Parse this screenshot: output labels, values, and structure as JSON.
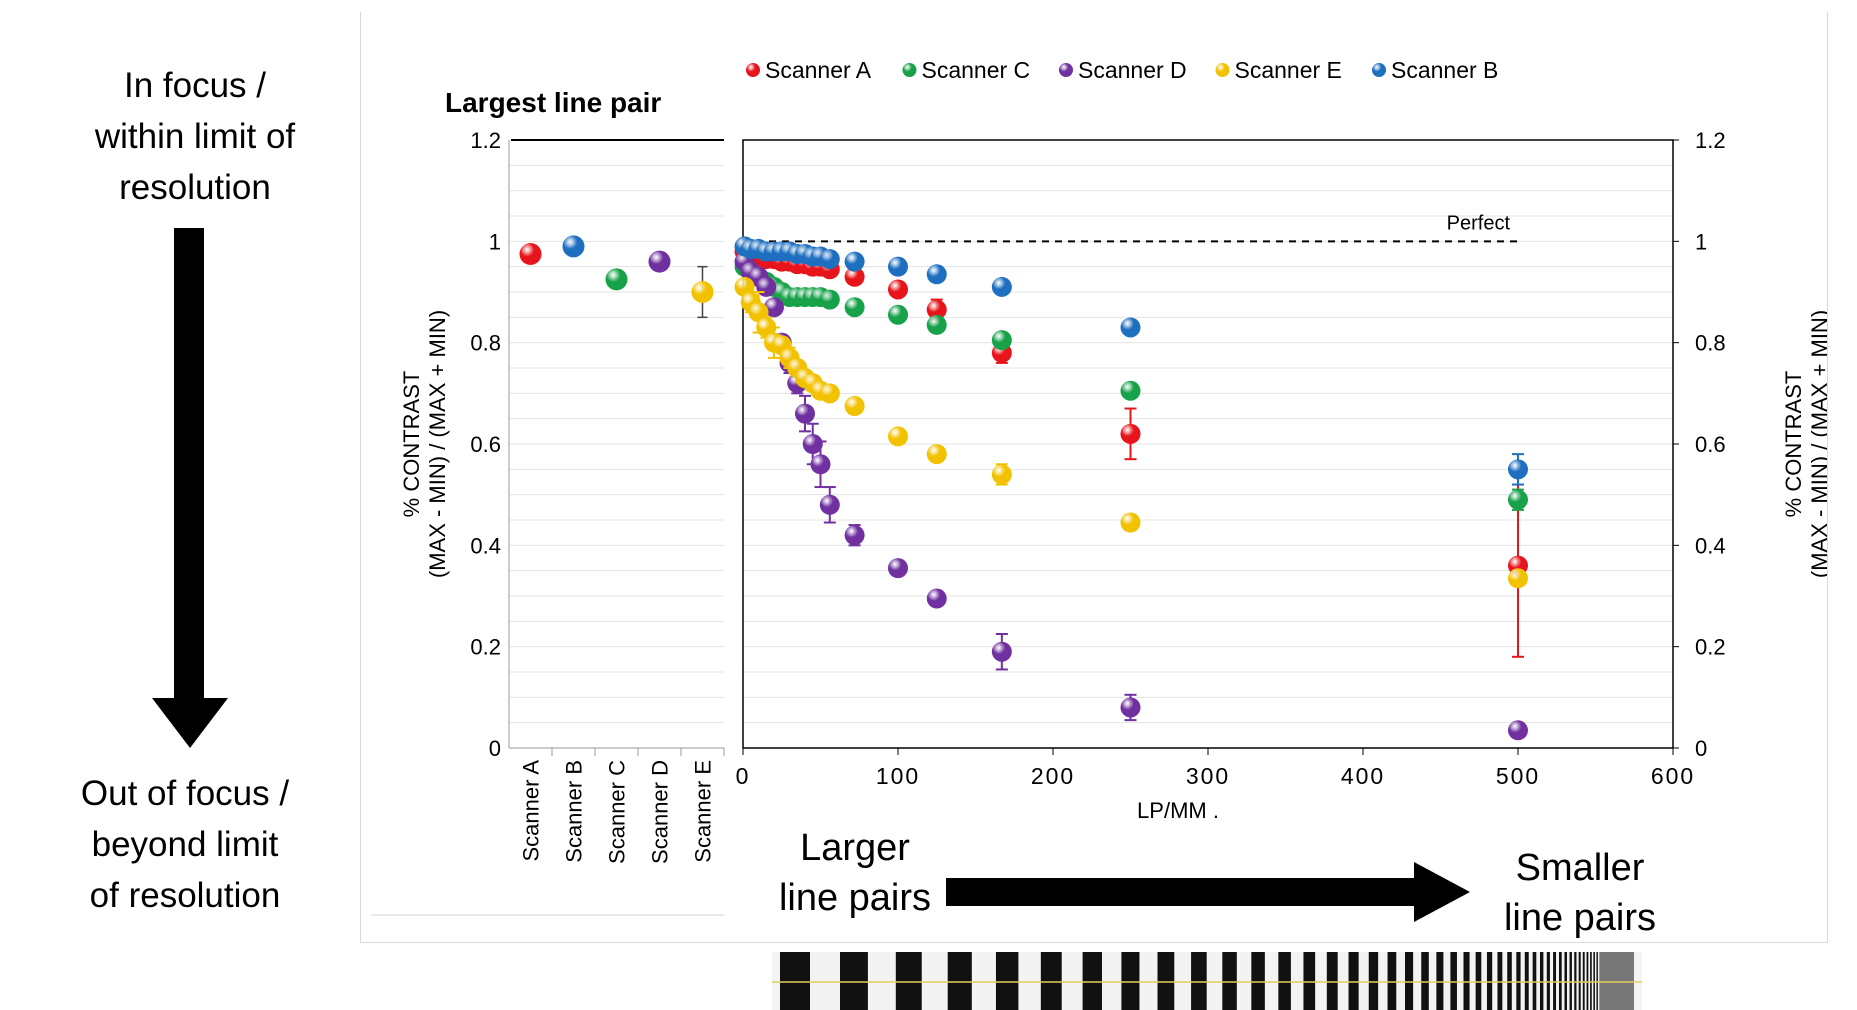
{
  "side": {
    "top_label": [
      "In focus /",
      "within limit of",
      "resolution"
    ],
    "bottom_label": [
      "Out of focus /",
      "beyond limit",
      "of resolution"
    ]
  },
  "bottom": {
    "left_label": [
      "Larger",
      "line pairs"
    ],
    "right_label": [
      "Smaller",
      "line pairs"
    ]
  },
  "colors": {
    "Scanner A": "#e8141b",
    "Scanner B": "#1f6fc0",
    "Scanner C": "#17a24a",
    "Scanner D": "#7030a0",
    "Scanner E": "#f2c200"
  },
  "chart_data": [
    {
      "type": "scatter",
      "title": "Largest line pair",
      "categories": [
        "Scanner A",
        "Scanner B",
        "Scanner C",
        "Scanner D",
        "Scanner E"
      ],
      "values": [
        0.975,
        0.99,
        0.925,
        0.96,
        0.9
      ],
      "errors": [
        0,
        0,
        0,
        0,
        0.05
      ],
      "ylabel": "% CONTRAST\n(MAX - MIN) / (MAX + MIN)",
      "ylabel_lines": [
        "% CONTRAST",
        "(MAX - MIN) / (MAX + MIN)"
      ],
      "ylim": [
        0,
        1.2
      ],
      "yticks": [
        "0",
        "0.2",
        "0.4",
        "0.6",
        "0.8",
        "1",
        "1.2"
      ]
    },
    {
      "type": "scatter",
      "xlabel": "LP/MM .",
      "ylabel_lines": [
        "% CONTRAST",
        "(MAX - MIN) / (MAX + MIN)"
      ],
      "xlim": [
        0,
        600
      ],
      "ylim": [
        0,
        1.2
      ],
      "xticks": [
        "0",
        "100",
        "200",
        "300",
        "400",
        "500",
        "600"
      ],
      "yticks": [
        "0",
        "0.2",
        "0.4",
        "0.6",
        "0.8",
        "1",
        "1.2"
      ],
      "reference_line": {
        "y": 1,
        "label": "Perfect"
      },
      "legend": "top",
      "series": [
        {
          "name": "Scanner A",
          "x": [
            1,
            5,
            10,
            15,
            20,
            25,
            30,
            35,
            40,
            45,
            50,
            56,
            72,
            100,
            125,
            167,
            250,
            500
          ],
          "y": [
            0.98,
            0.975,
            0.97,
            0.965,
            0.965,
            0.96,
            0.96,
            0.955,
            0.955,
            0.95,
            0.95,
            0.945,
            0.93,
            0.905,
            0.865,
            0.78,
            0.62,
            0.36
          ],
          "err": [
            0,
            0,
            0,
            0,
            0,
            0,
            0,
            0,
            0,
            0,
            0,
            0,
            0,
            0,
            0.02,
            0.02,
            0.05,
            0.18
          ]
        },
        {
          "name": "Scanner C",
          "x": [
            1,
            5,
            10,
            15,
            20,
            25,
            30,
            35,
            40,
            45,
            50,
            56,
            72,
            100,
            125,
            167,
            250,
            500
          ],
          "y": [
            0.95,
            0.94,
            0.93,
            0.92,
            0.91,
            0.9,
            0.89,
            0.89,
            0.89,
            0.89,
            0.89,
            0.885,
            0.87,
            0.855,
            0.835,
            0.805,
            0.705,
            0.49
          ],
          "err": [
            0,
            0,
            0,
            0,
            0,
            0,
            0,
            0,
            0,
            0,
            0,
            0,
            0,
            0,
            0,
            0,
            0,
            0.02
          ]
        },
        {
          "name": "Scanner D",
          "x": [
            1,
            5,
            10,
            15,
            20,
            25,
            30,
            35,
            40,
            45,
            50,
            56,
            72,
            100,
            125,
            167,
            250,
            500
          ],
          "y": [
            0.96,
            0.94,
            0.93,
            0.91,
            0.87,
            0.8,
            0.76,
            0.72,
            0.66,
            0.6,
            0.56,
            0.48,
            0.42,
            0.355,
            0.295,
            0.19,
            0.08,
            0.035
          ],
          "err": [
            0,
            0,
            0,
            0,
            0,
            0,
            0.02,
            0.02,
            0.035,
            0.04,
            0.045,
            0.035,
            0.02,
            0,
            0,
            0.035,
            0.025,
            0
          ]
        },
        {
          "name": "Scanner E",
          "x": [
            1,
            5,
            10,
            15,
            20,
            25,
            30,
            35,
            40,
            45,
            50,
            56,
            72,
            100,
            125,
            167,
            250,
            500
          ],
          "y": [
            0.91,
            0.88,
            0.86,
            0.83,
            0.8,
            0.795,
            0.77,
            0.75,
            0.73,
            0.72,
            0.705,
            0.7,
            0.675,
            0.615,
            0.58,
            0.54,
            0.445,
            0.335
          ],
          "err": [
            0,
            0.02,
            0.04,
            0.02,
            0.03,
            0,
            0.02,
            0,
            0,
            0,
            0,
            0,
            0,
            0,
            0,
            0.02,
            0.015,
            0
          ]
        },
        {
          "name": "Scanner B",
          "x": [
            1,
            5,
            10,
            15,
            20,
            25,
            30,
            35,
            40,
            45,
            50,
            56,
            72,
            100,
            125,
            167,
            250,
            500
          ],
          "y": [
            0.99,
            0.985,
            0.985,
            0.98,
            0.98,
            0.98,
            0.98,
            0.975,
            0.975,
            0.97,
            0.97,
            0.965,
            0.96,
            0.95,
            0.935,
            0.91,
            0.83,
            0.55
          ],
          "err": [
            0,
            0,
            0,
            0,
            0,
            0,
            0,
            0,
            0,
            0,
            0,
            0,
            0,
            0,
            0,
            0,
            0,
            0.03
          ]
        }
      ]
    }
  ]
}
